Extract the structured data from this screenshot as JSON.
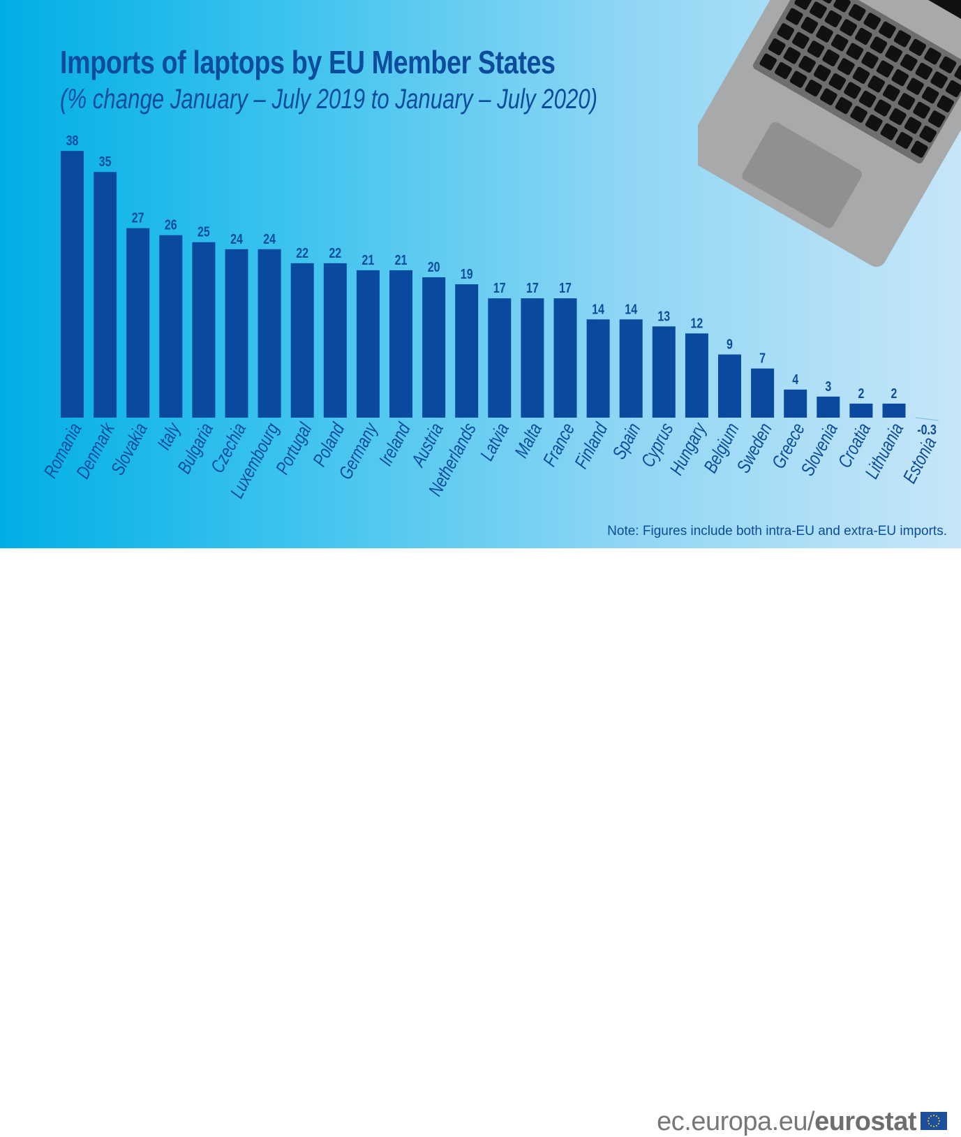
{
  "chart_data": {
    "type": "bar",
    "title": "Imports of laptops by EU Member States",
    "subtitle": "(% change January – July 2019 to January – July 2020)",
    "categories": [
      "Romania",
      "Denmark",
      "Slovakia",
      "Italy",
      "Bulgaria",
      "Czechia",
      "Luxembourg",
      "Portugal",
      "Poland",
      "Germany",
      "Ireland",
      "Austria",
      "Netherlands",
      "Latvia",
      "Malta",
      "France",
      "Finland",
      "Spain",
      "Cyprus",
      "Hungary",
      "Belgium",
      "Sweden",
      "Greece",
      "Slovenia",
      "Croatia",
      "Lithuania",
      "Estonia"
    ],
    "values": [
      38,
      35,
      27,
      26,
      25,
      24,
      24,
      22,
      22,
      21,
      21,
      20,
      19,
      17,
      17,
      17,
      14,
      14,
      13,
      12,
      9,
      7,
      4,
      3,
      2,
      2,
      -0.3
    ],
    "value_labels": [
      "38",
      "35",
      "27",
      "26",
      "25",
      "24",
      "24",
      "22",
      "22",
      "21",
      "21",
      "20",
      "19",
      "17",
      "17",
      "17",
      "14",
      "14",
      "13",
      "12",
      "9",
      "7",
      "4",
      "3",
      "2",
      "2",
      "-0.3"
    ],
    "xlabel": "",
    "ylabel": "",
    "grid": false,
    "bar_color": "#0a4a9e",
    "label_color": "#0c4c9c"
  },
  "note": "Note: Figures include both intra-EU and extra-EU imports.",
  "footer": {
    "site_prefix": "ec.europa.eu/",
    "site_brand": "eurostat",
    "logo": "eu-flag-icon"
  },
  "decoration": "laptop-illustration"
}
